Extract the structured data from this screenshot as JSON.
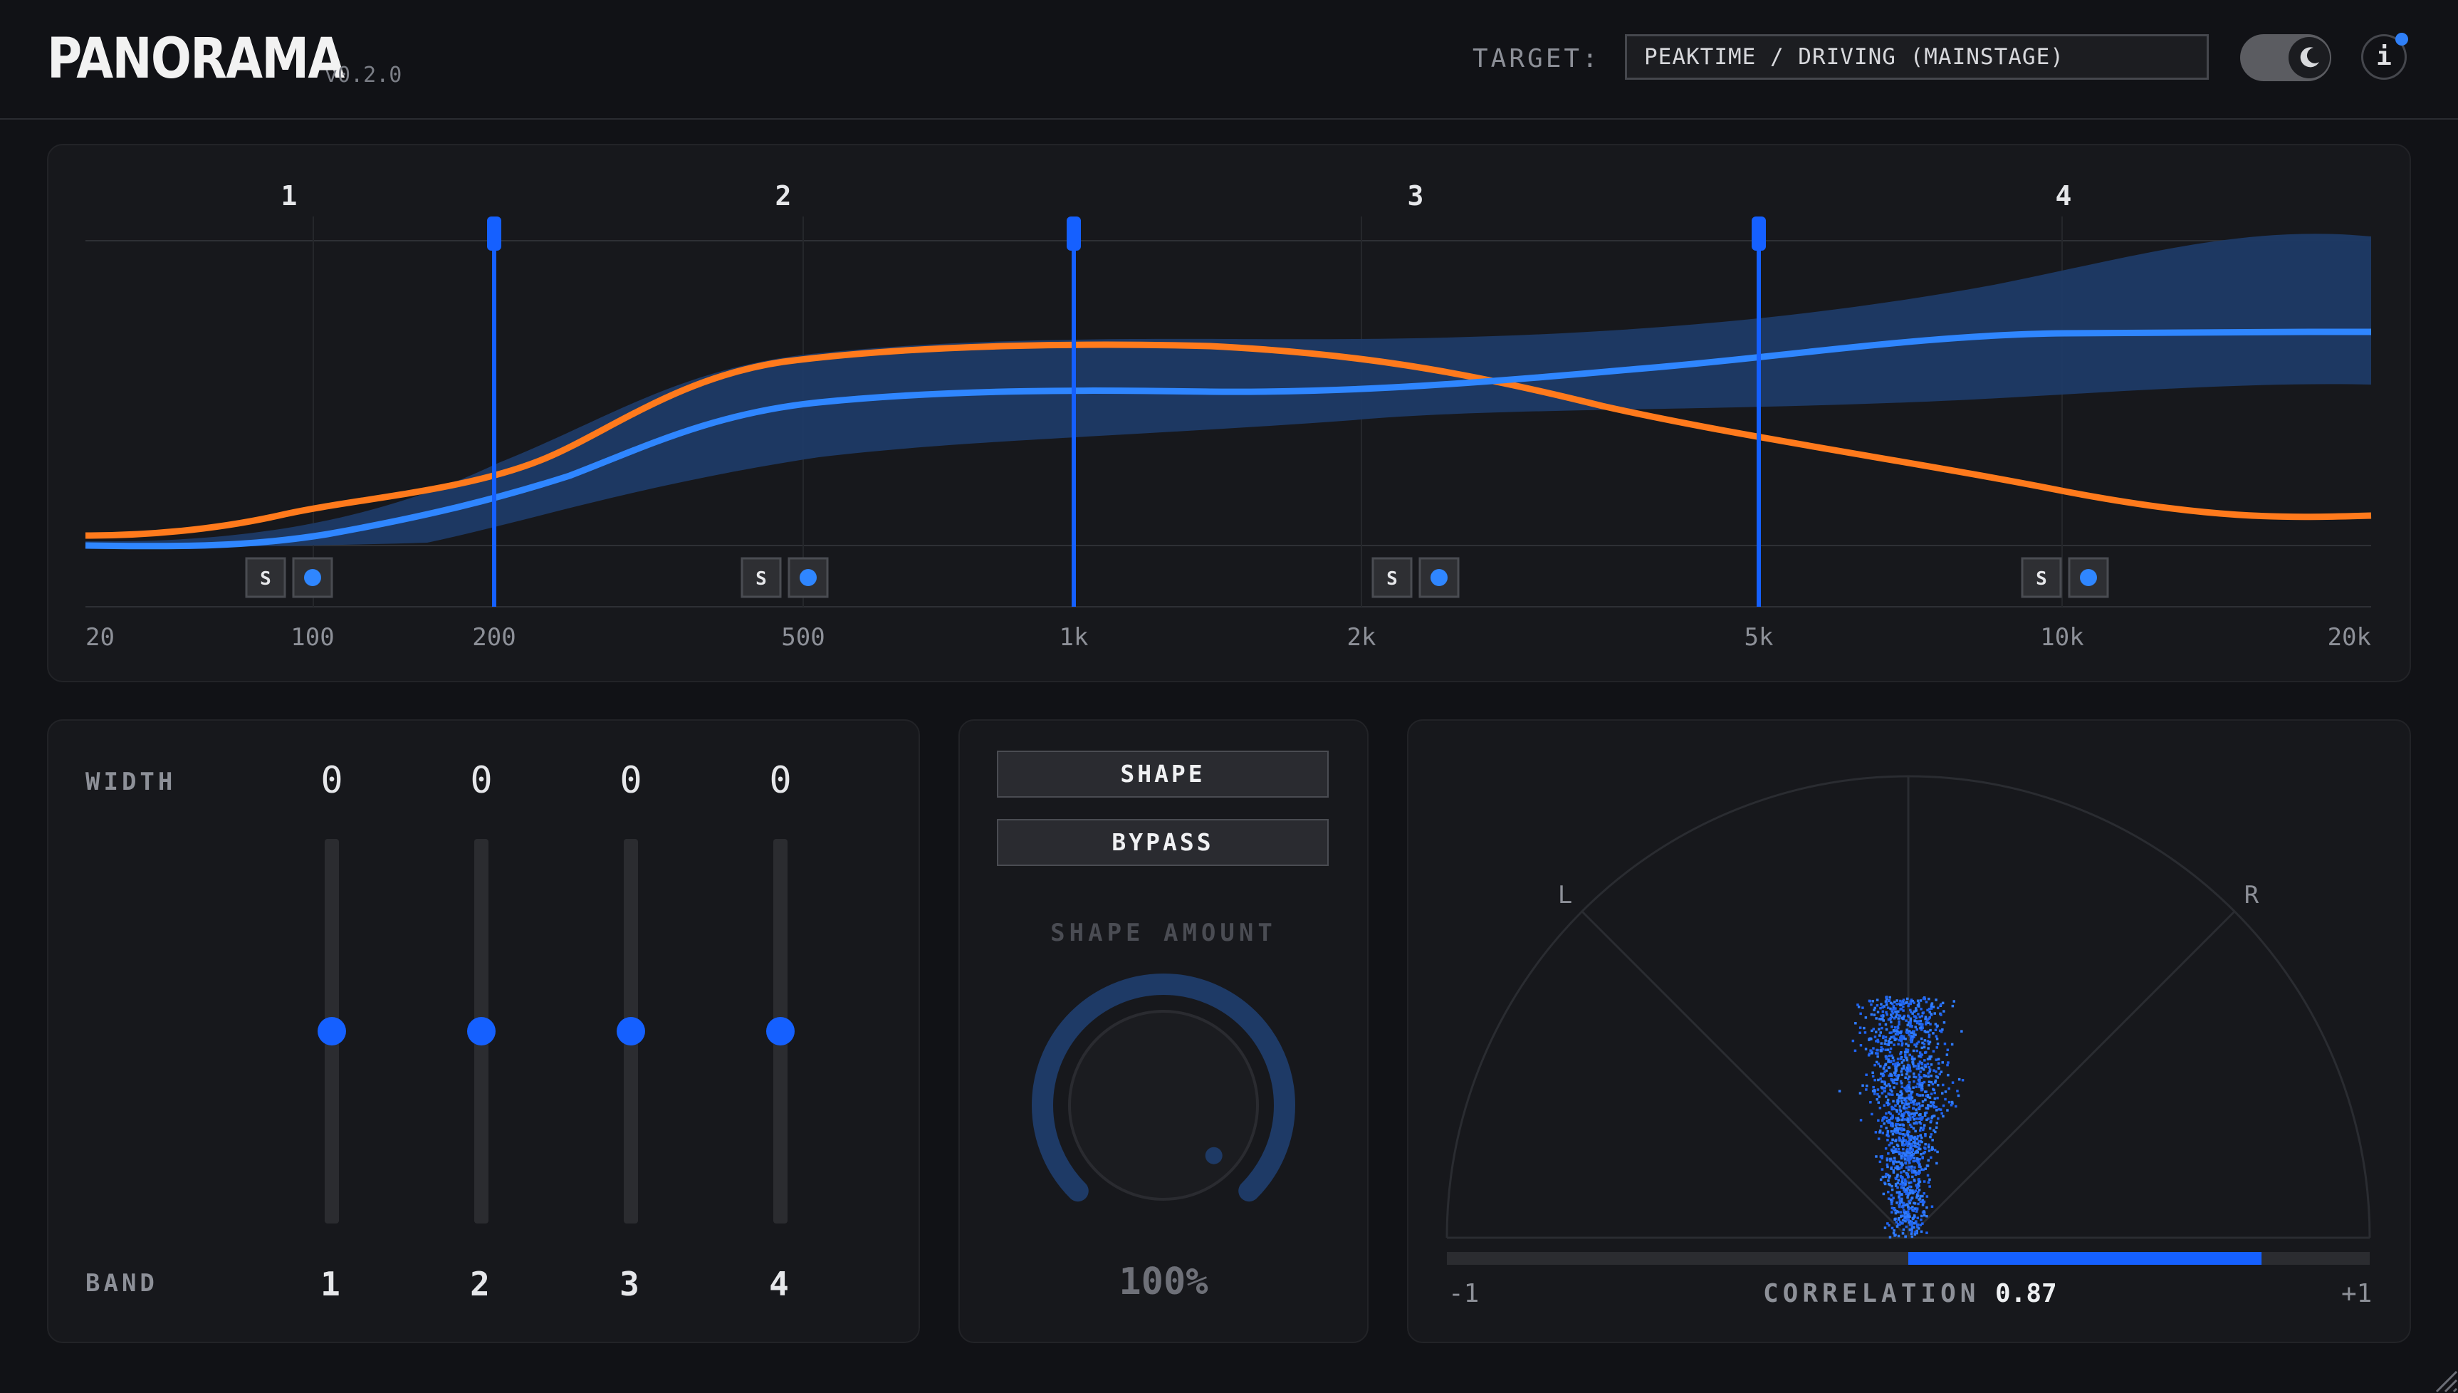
{
  "app": {
    "title": "PANORAMA",
    "version": "v0.2.0"
  },
  "header": {
    "target_label": "TARGET:",
    "target_value": "PEAKTIME / DRIVING (MAINSTAGE)",
    "theme_icon": "moon-icon",
    "info_label": "i"
  },
  "eq": {
    "band_labels": [
      "1",
      "2",
      "3",
      "4"
    ],
    "solo_label": "S",
    "freq_labels": [
      "20",
      "100",
      "200",
      "500",
      "1k",
      "2k",
      "5k",
      "10k",
      "20k"
    ],
    "crossover_freqs_hz": [
      200,
      1000,
      5000
    ],
    "colors": {
      "target": "#2f86ff",
      "measured": "#ff7a1c",
      "band": "#1e3a66",
      "crossover": "#1560ff"
    }
  },
  "width": {
    "title": "WIDTH",
    "band_title": "BAND",
    "values": [
      "0",
      "0",
      "0",
      "0"
    ],
    "bands": [
      "1",
      "2",
      "3",
      "4"
    ],
    "slider_positions": [
      0.5,
      0.5,
      0.5,
      0.5
    ]
  },
  "shape": {
    "shape_button": "SHAPE",
    "bypass_button": "BYPASS",
    "amount_label": "SHAPE AMOUNT",
    "amount_value": "100%",
    "amount_fraction": 1.0
  },
  "scope": {
    "left_label": "L",
    "right_label": "R",
    "corr_min": "-1",
    "corr_max": "+1",
    "corr_label": "CORRELATION",
    "corr_value": "0.87",
    "corr_fraction": 0.87
  }
}
